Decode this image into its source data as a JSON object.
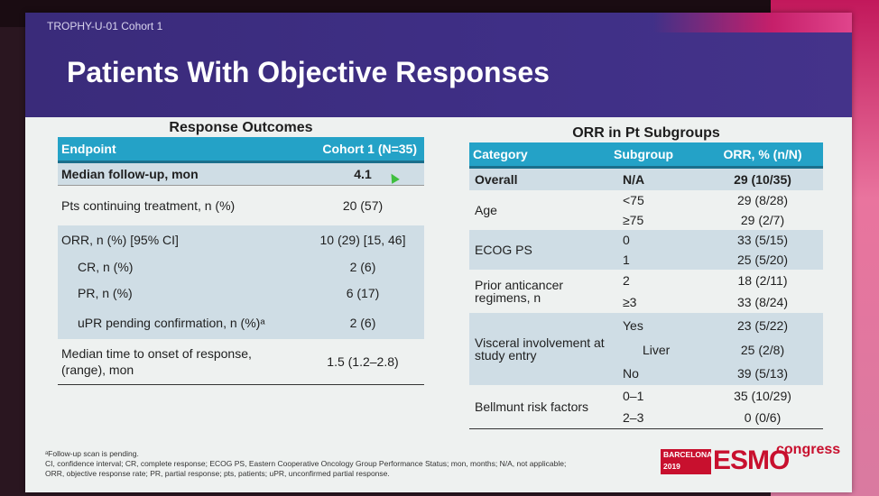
{
  "slide": {
    "study_label": "TROPHY-U-01 Cohort 1",
    "title": "Patients With Objective Responses"
  },
  "left_table": {
    "title": "Response Outcomes",
    "headers": [
      "Endpoint",
      "Cohort 1 (N=35)"
    ],
    "rows": [
      {
        "label": "Median follow-up, mon",
        "value": "4.1"
      },
      {
        "label": "Pts continuing treatment, n (%)",
        "value": "20 (57)"
      },
      {
        "label": "ORR, n (%) [95% CI]",
        "value": "10 (29) [15, 46]"
      },
      {
        "label": "CR, n (%)",
        "value": "2 (6)"
      },
      {
        "label": "PR, n (%)",
        "value": "6 (17)"
      },
      {
        "label": "uPR pending confirmation, n (%)ᵃ",
        "value": "2 (6)"
      },
      {
        "label": "Median time to onset of response,\n(range), mon",
        "value": "1.5 (1.2–2.8)"
      }
    ]
  },
  "right_table": {
    "title": "ORR in Pt Subgroups",
    "headers": [
      "Category",
      "Subgroup",
      "ORR, % (n/N)"
    ],
    "groups": [
      {
        "category": "Overall",
        "rows": [
          {
            "subgroup": "N/A",
            "value": "29 (10/35)"
          }
        ]
      },
      {
        "category": "Age",
        "rows": [
          {
            "subgroup": "<75",
            "value": "29 (8/28)"
          },
          {
            "subgroup": "≥75",
            "value": "29 (2/7)"
          }
        ]
      },
      {
        "category": "ECOG PS",
        "rows": [
          {
            "subgroup": "0",
            "value": "33 (5/15)"
          },
          {
            "subgroup": "1",
            "value": "25 (5/20)"
          }
        ]
      },
      {
        "category": "Prior anticancer regimens, n",
        "rows": [
          {
            "subgroup": "2",
            "value": "18 (2/11)"
          },
          {
            "subgroup": "≥3",
            "value": "33 (8/24)"
          }
        ]
      },
      {
        "category": "Visceral involvement at study entry",
        "rows": [
          {
            "subgroup": "Yes",
            "value": "23 (5/22)"
          },
          {
            "subgroup": "Liver",
            "value": "25 (2/8)"
          },
          {
            "subgroup": "No",
            "value": "39 (5/13)"
          }
        ]
      },
      {
        "category": "Bellmunt risk factors",
        "rows": [
          {
            "subgroup": "0–1",
            "value": "35 (10/29)"
          },
          {
            "subgroup": "2–3",
            "value": "0 (0/6)"
          }
        ]
      }
    ]
  },
  "footnotes": {
    "line1": "ᵃFollow-up scan is pending.",
    "line2": "CI, confidence interval; CR, complete response; ECOG PS, Eastern Cooperative Oncology Group Performance Status; mon, months; N/A, not applicable;",
    "line3": "ORR, objective response rate; PR, partial response; pts, patients; uPR, unconfirmed partial response."
  },
  "logo": {
    "city": "BARCELONA",
    "year": "2019",
    "brand": "ESMO",
    "congress": "congress"
  },
  "colors": {
    "banner": "#3f2f86",
    "header": "#24a2c7",
    "row_shade": "#cfdde5",
    "brand_red": "#c8102e"
  }
}
